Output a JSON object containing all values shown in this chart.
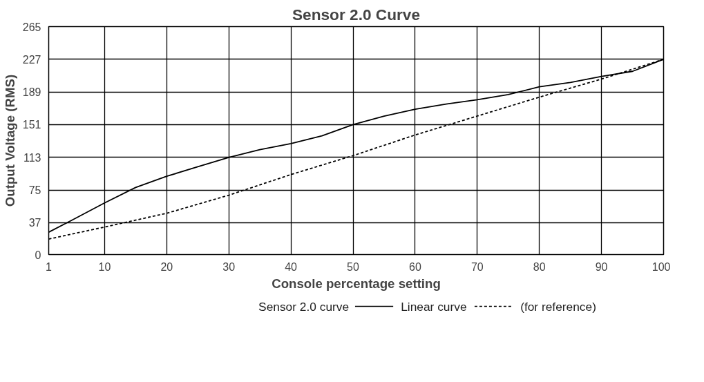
{
  "chart_data": {
    "type": "line",
    "title": "Sensor 2.0 Curve",
    "xlabel": "Console percentage setting",
    "ylabel": "Output Voltage (RMS)",
    "xlim": [
      1,
      100
    ],
    "xticks": [
      1,
      10,
      20,
      30,
      40,
      50,
      60,
      70,
      80,
      90,
      100
    ],
    "ylim": [
      0,
      265
    ],
    "yticks": [
      0,
      37,
      75,
      113,
      151,
      189,
      227,
      265
    ],
    "grid": true,
    "legend": "bottom",
    "marker": "none",
    "series": [
      {
        "name": "Sensor 2.0 curve",
        "color": "#000000",
        "line_style": "solid",
        "x": [
          1,
          5,
          10,
          15,
          20,
          25,
          30,
          35,
          40,
          45,
          50,
          55,
          60,
          65,
          70,
          75,
          80,
          85,
          90,
          95,
          100
        ],
        "values": [
          26,
          41,
          60,
          78,
          91,
          102,
          113,
          122,
          129,
          138,
          151,
          161,
          169,
          175,
          180,
          186,
          195,
          200,
          207,
          213,
          227
        ]
      },
      {
        "name": "Linear curve",
        "color": "#000000",
        "line_style": "dashed",
        "x": [
          1,
          10,
          15,
          20,
          30,
          40,
          50,
          60,
          70,
          80,
          90,
          100
        ],
        "values": [
          18,
          32,
          40,
          48,
          69,
          93,
          115,
          139,
          161,
          183,
          204,
          227
        ]
      }
    ],
    "annotations": [
      "(for reference)"
    ]
  }
}
